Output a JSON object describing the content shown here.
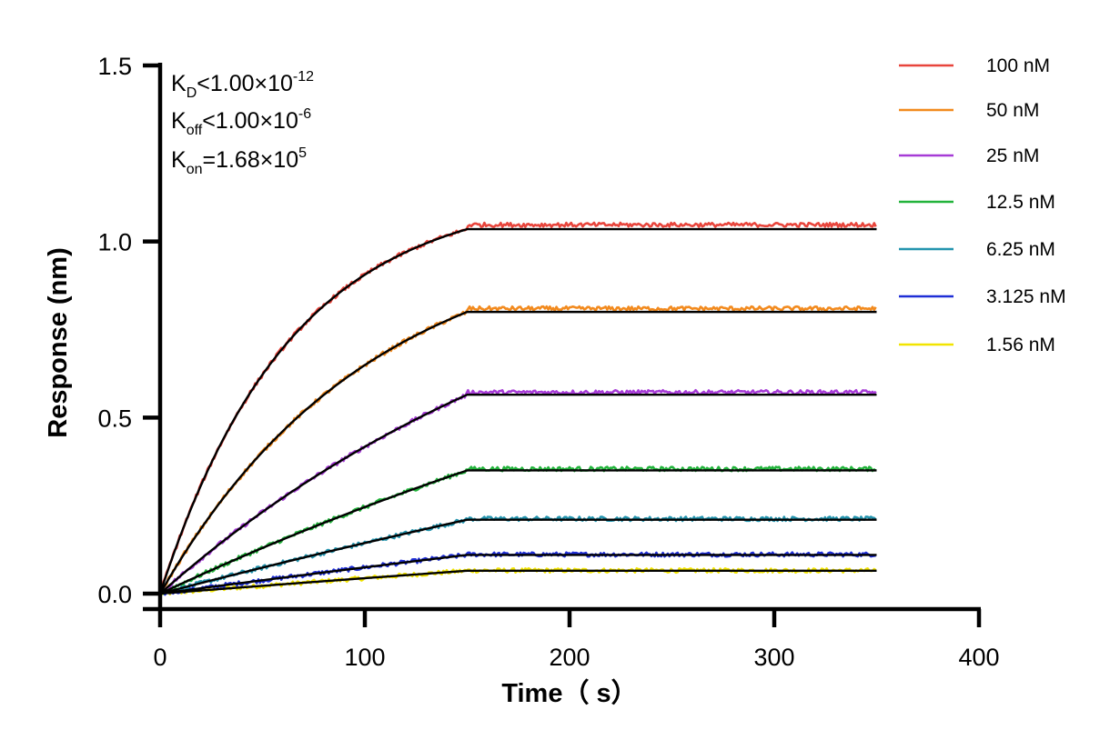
{
  "chart_data": {
    "type": "line",
    "xlabel": "Time（ s）",
    "ylabel": "Response (nm)",
    "xlim": [
      0,
      400
    ],
    "ylim": [
      0,
      1.5
    ],
    "x_ticks": [
      "0",
      "100",
      "200",
      "300",
      "400"
    ],
    "y_ticks": [
      "0.0",
      "0.5",
      "1.0",
      "1.5"
    ],
    "association_end": 150,
    "time_end": 350,
    "kinetics": {
      "kd": {
        "sym": "K",
        "sub": "D",
        "rel": "<1.00×10",
        "exp": "-12"
      },
      "koff": {
        "sym": "K",
        "sub": "off",
        "rel": "<1.00×10",
        "exp": "-6"
      },
      "kon": {
        "sym": "K",
        "sub": "on",
        "rel": "=1.68×10",
        "exp": "5"
      }
    },
    "series": [
      {
        "name": "100 nM",
        "color": "#e8453c",
        "kobs": 0.0157,
        "plateau": 1.035
      },
      {
        "name": "50 nM",
        "color": "#f28a1e",
        "kobs": 0.0098,
        "plateau": 0.8
      },
      {
        "name": "25 nM",
        "color": "#a63bd6",
        "kobs": 0.0045,
        "plateau": 0.565
      },
      {
        "name": "12.5 nM",
        "color": "#22b33b",
        "kobs": 0.0022,
        "plateau": 0.35
      },
      {
        "name": "6.25 nM",
        "color": "#2394ae",
        "kobs": 0.0011,
        "plateau": 0.21
      },
      {
        "name": "3.125 nM",
        "color": "#1f2ed6",
        "kobs": 0.0007,
        "plateau": 0.11
      },
      {
        "name": "1.56 nM",
        "color": "#f2e400",
        "kobs": 0.0005,
        "plateau": 0.065
      }
    ],
    "fit_color": "#000000",
    "grid": false,
    "legend_position": "top-right"
  }
}
